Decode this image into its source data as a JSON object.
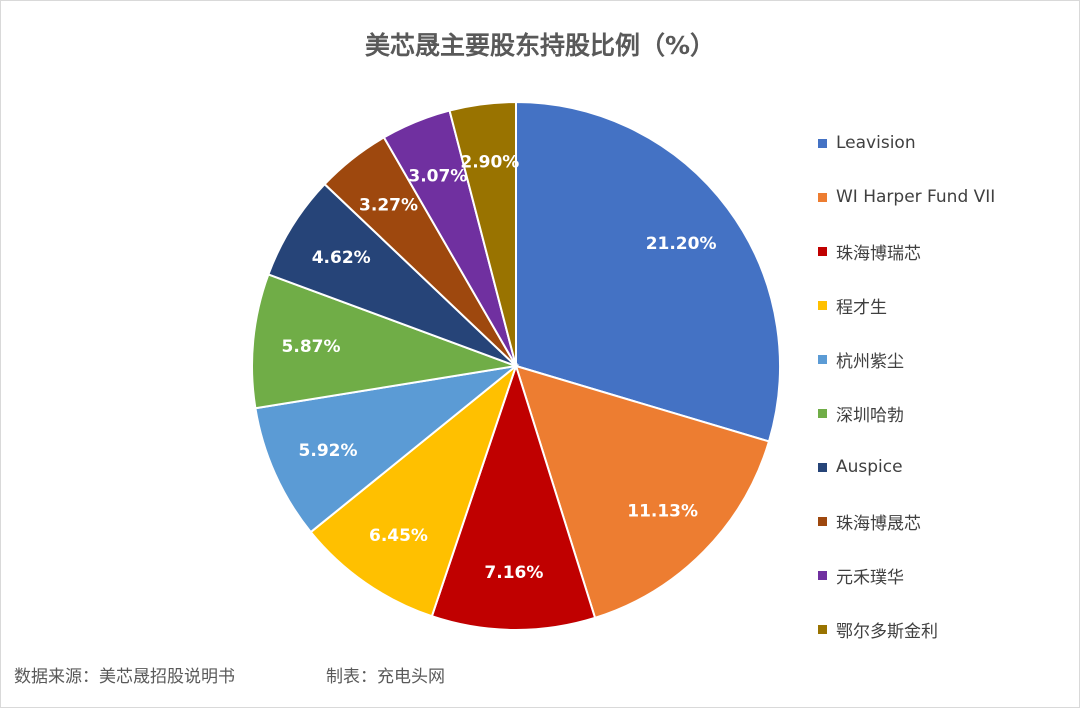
{
  "chart_data": {
    "type": "pie",
    "title": "美芯晟主要股东持股比例（%）",
    "series": [
      {
        "name": "Leavision",
        "value": 21.2,
        "label": "21.20%",
        "color": "#4472C4"
      },
      {
        "name": "WI Harper Fund VII",
        "value": 11.13,
        "label": "11.13%",
        "color": "#ED7D31"
      },
      {
        "name": "珠海博瑞芯",
        "value": 7.16,
        "label": "7.16%",
        "color": "#C00000"
      },
      {
        "name": "程才生",
        "value": 6.45,
        "label": "6.45%",
        "color": "#FFC000"
      },
      {
        "name": "杭州紫尘",
        "value": 5.92,
        "label": "5.92%",
        "color": "#5B9BD5"
      },
      {
        "name": "深圳哈勃",
        "value": 5.87,
        "label": "5.87%",
        "color": "#70AD47"
      },
      {
        "name": "Auspice",
        "value": 4.62,
        "label": "4.62%",
        "color": "#264478"
      },
      {
        "name": "珠海博晟芯",
        "value": 3.27,
        "label": "3.27%",
        "color": "#9E480E"
      },
      {
        "name": "元禾璞华",
        "value": 3.07,
        "label": "3.07%",
        "color": "#7030A0"
      },
      {
        "name": "鄂尔多斯金利",
        "value": 2.9,
        "label": "2.90%",
        "color": "#997300"
      }
    ],
    "legend_position": "right"
  },
  "footer": {
    "source": "数据来源：美芯晟招股说明书",
    "maker": "制表：充电头网"
  }
}
